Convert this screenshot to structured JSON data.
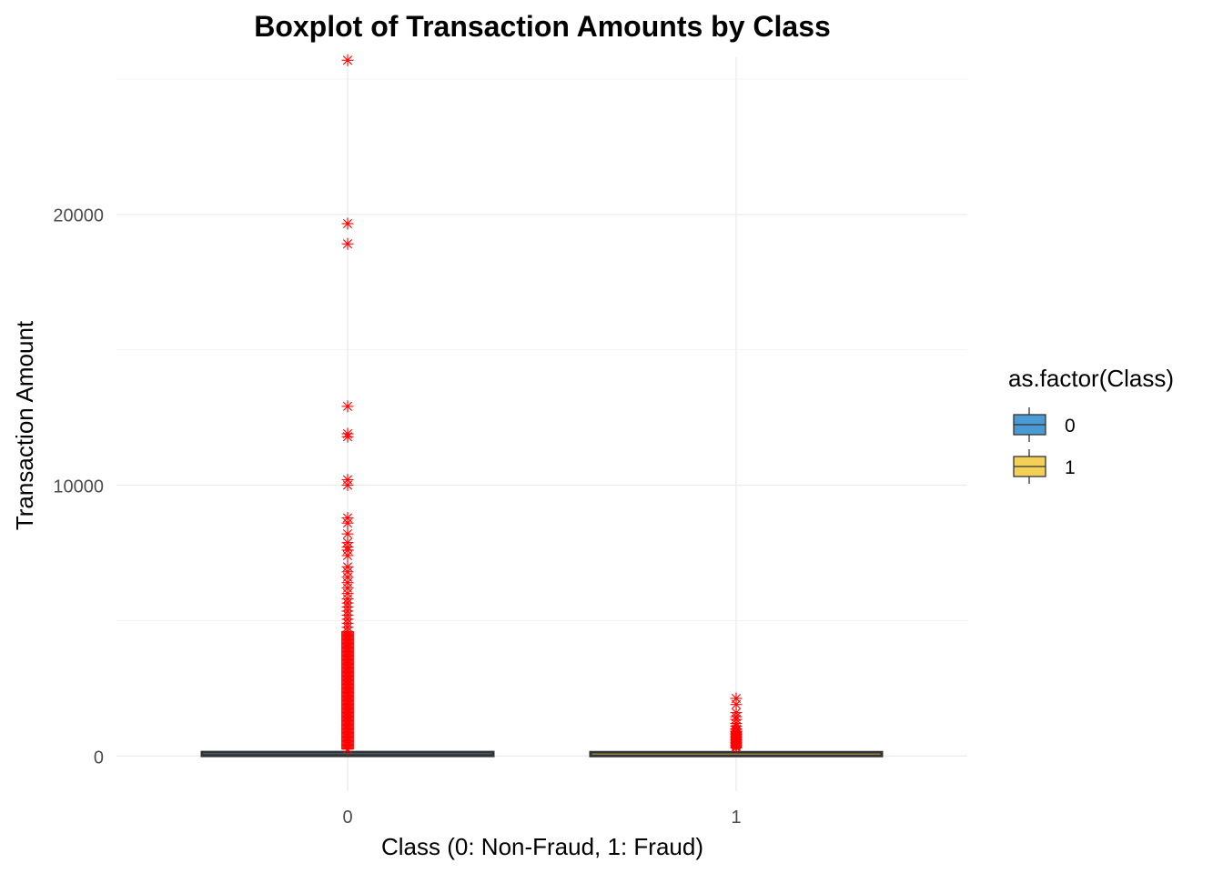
{
  "chart_data": {
    "type": "boxplot",
    "title": "Boxplot of Transaction Amounts by Class",
    "xlabel": "Class (0: Non-Fraud, 1: Fraud)",
    "ylabel": "Transaction Amount",
    "categories": [
      "0",
      "1"
    ],
    "ylim": [
      -1300,
      25800
    ],
    "y_ticks": [
      0,
      10000,
      20000
    ],
    "y_tick_labels": [
      "0",
      "10000",
      "20000"
    ],
    "grid": true,
    "legend": {
      "title": "as.factor(Class)",
      "placement": "right",
      "entries": [
        {
          "label": "0",
          "color": "#4a9bd4"
        },
        {
          "label": "1",
          "color": "#f3d158"
        }
      ]
    },
    "boxes": [
      {
        "category": "0",
        "fill": "#4a9bd4",
        "min": 0,
        "q1": 5.6,
        "median": 22,
        "q3": 77,
        "whisker_high": 185
      },
      {
        "category": "1",
        "fill": "#f3d158",
        "min": 0,
        "q1": 1,
        "median": 9.25,
        "q3": 105.9,
        "whisker_high": 260
      }
    ],
    "outlier_color": "#ff0000",
    "outliers": [
      {
        "category": "0",
        "values": [
          25691,
          19656,
          18910,
          12910,
          11898,
          11790,
          10199,
          10000,
          8790,
          8600,
          8200,
          7880,
          7712,
          7600,
          7400,
          6982,
          6800,
          6600,
          6400,
          6200,
          6000,
          5800,
          5650,
          5500,
          5350,
          5200,
          5050,
          4900,
          4750,
          4600,
          4450,
          4300,
          4150,
          4000,
          3850,
          3700,
          3550,
          3400,
          3250,
          3100,
          2950,
          2800,
          2650,
          2500,
          2350,
          2200,
          2050,
          1900,
          1750,
          1600,
          1450,
          1300,
          1150,
          1000,
          850,
          700,
          550,
          400,
          250
        ]
      },
      {
        "category": "1",
        "values": [
          2125,
          1900,
          1600,
          1450,
          1350,
          1200,
          1100,
          1000,
          950,
          900,
          850,
          800,
          750,
          700,
          650,
          600,
          550,
          500,
          450,
          400,
          350,
          300
        ]
      }
    ]
  }
}
